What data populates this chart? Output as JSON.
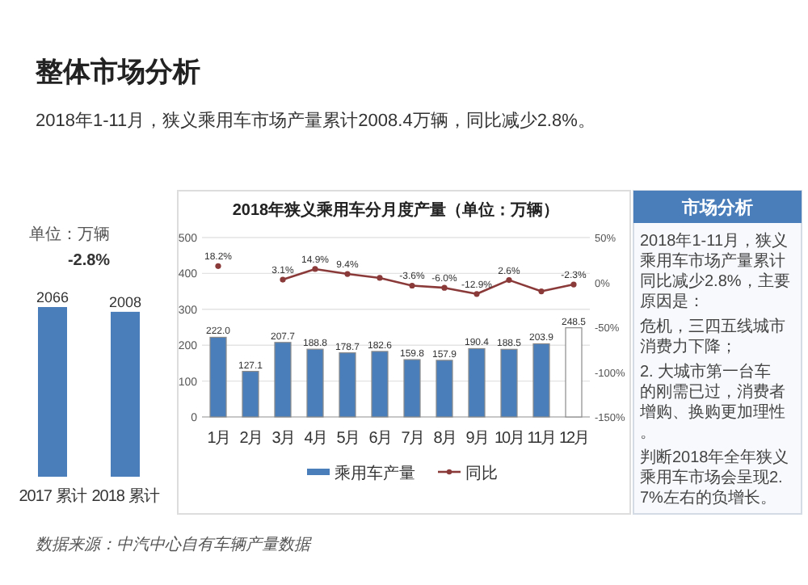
{
  "chart_data": [
    {
      "type": "bar",
      "title": "整体市场分析",
      "subtitle": "2018年1-11月，狭义乘用车市场产量累计2008.4万辆，同比减少2.8%。",
      "annotations": [
        "单位：万辆",
        "-2.8%"
      ],
      "categories": [
        "2017 累计",
        "2018 累计"
      ],
      "values": [
        2066,
        2008
      ],
      "color": "#4a7ebb",
      "data_labels": true
    },
    {
      "type": "bar",
      "title": "2018年狭义乘用车分月度产量（单位：万辆）",
      "categories": [
        "1月",
        "2月",
        "3月",
        "4月",
        "5月",
        "6月",
        "7月",
        "8月",
        "9月",
        "10月",
        "11月",
        "12月"
      ],
      "series": [
        {
          "name": "乘用车产量",
          "type": "bar",
          "colors": [
            "#4a7ebb",
            "#4a7ebb",
            "#4a7ebb",
            "#4a7ebb",
            "#4a7ebb",
            "#4a7ebb",
            "#4a7ebb",
            "#4a7ebb",
            "#4a7ebb",
            "#4a7ebb",
            "#4a7ebb",
            "#ffffff"
          ],
          "values": [
            222.0,
            127.1,
            207.7,
            188.8,
            178.7,
            182.6,
            159.8,
            157.9,
            190.4,
            188.5,
            203.9,
            248.5
          ],
          "value_labels": [
            "222.0",
            "127.1",
            "207.7",
            "188.8",
            "178.7",
            "182.6",
            "159.8",
            "157.9",
            "190.4",
            "188.5",
            "203.9",
            "248.5"
          ]
        },
        {
          "name": "同比",
          "type": "line",
          "axis": "y2",
          "color": "#8b3a3a",
          "marker": "circle",
          "values": [
            18.2,
            null,
            3.1,
            14.9,
            9.4,
            5,
            -3.6,
            -6.0,
            -12.9,
            2.6,
            -10,
            -2.3
          ],
          "value_labels": [
            "18.2%",
            null,
            "3.1%",
            "14.9%",
            "9.4%",
            null,
            "-3.6%",
            "-6.0%",
            "-12.9%",
            "2.6%",
            null,
            "-2.3%"
          ]
        }
      ],
      "ylim": [
        0,
        500
      ],
      "yticks": [
        0,
        100,
        200,
        300,
        400,
        500
      ],
      "y2lim": [
        -150,
        50
      ],
      "y2ticks": [
        {
          "value": 50,
          "label": "50%"
        },
        {
          "value": 0,
          "label": "0%"
        },
        {
          "value": -50,
          "label": "-50%"
        },
        {
          "value": -100,
          "label": "-100%"
        },
        {
          "value": -150,
          "label": "-150%"
        }
      ],
      "grid": "y",
      "legend": "bottom",
      "annotations": [
        "数据来源：中汽中心自有车辆产量数据"
      ]
    },
    {
      "type": "other",
      "title": "市场分析",
      "annotations": [
        "2018年1-11月，狭义乘用车市场产量累计同比减少2.8%，主要原因是：",
        "危机，三四五线城市消费力下降；",
        "2. 大城市第一台车的刚需已过，消费者增购、换购更加理性。",
        "判断2018年全年狭义乘用车市场会呈现2.7%左右的负增长。"
      ]
    }
  ]
}
